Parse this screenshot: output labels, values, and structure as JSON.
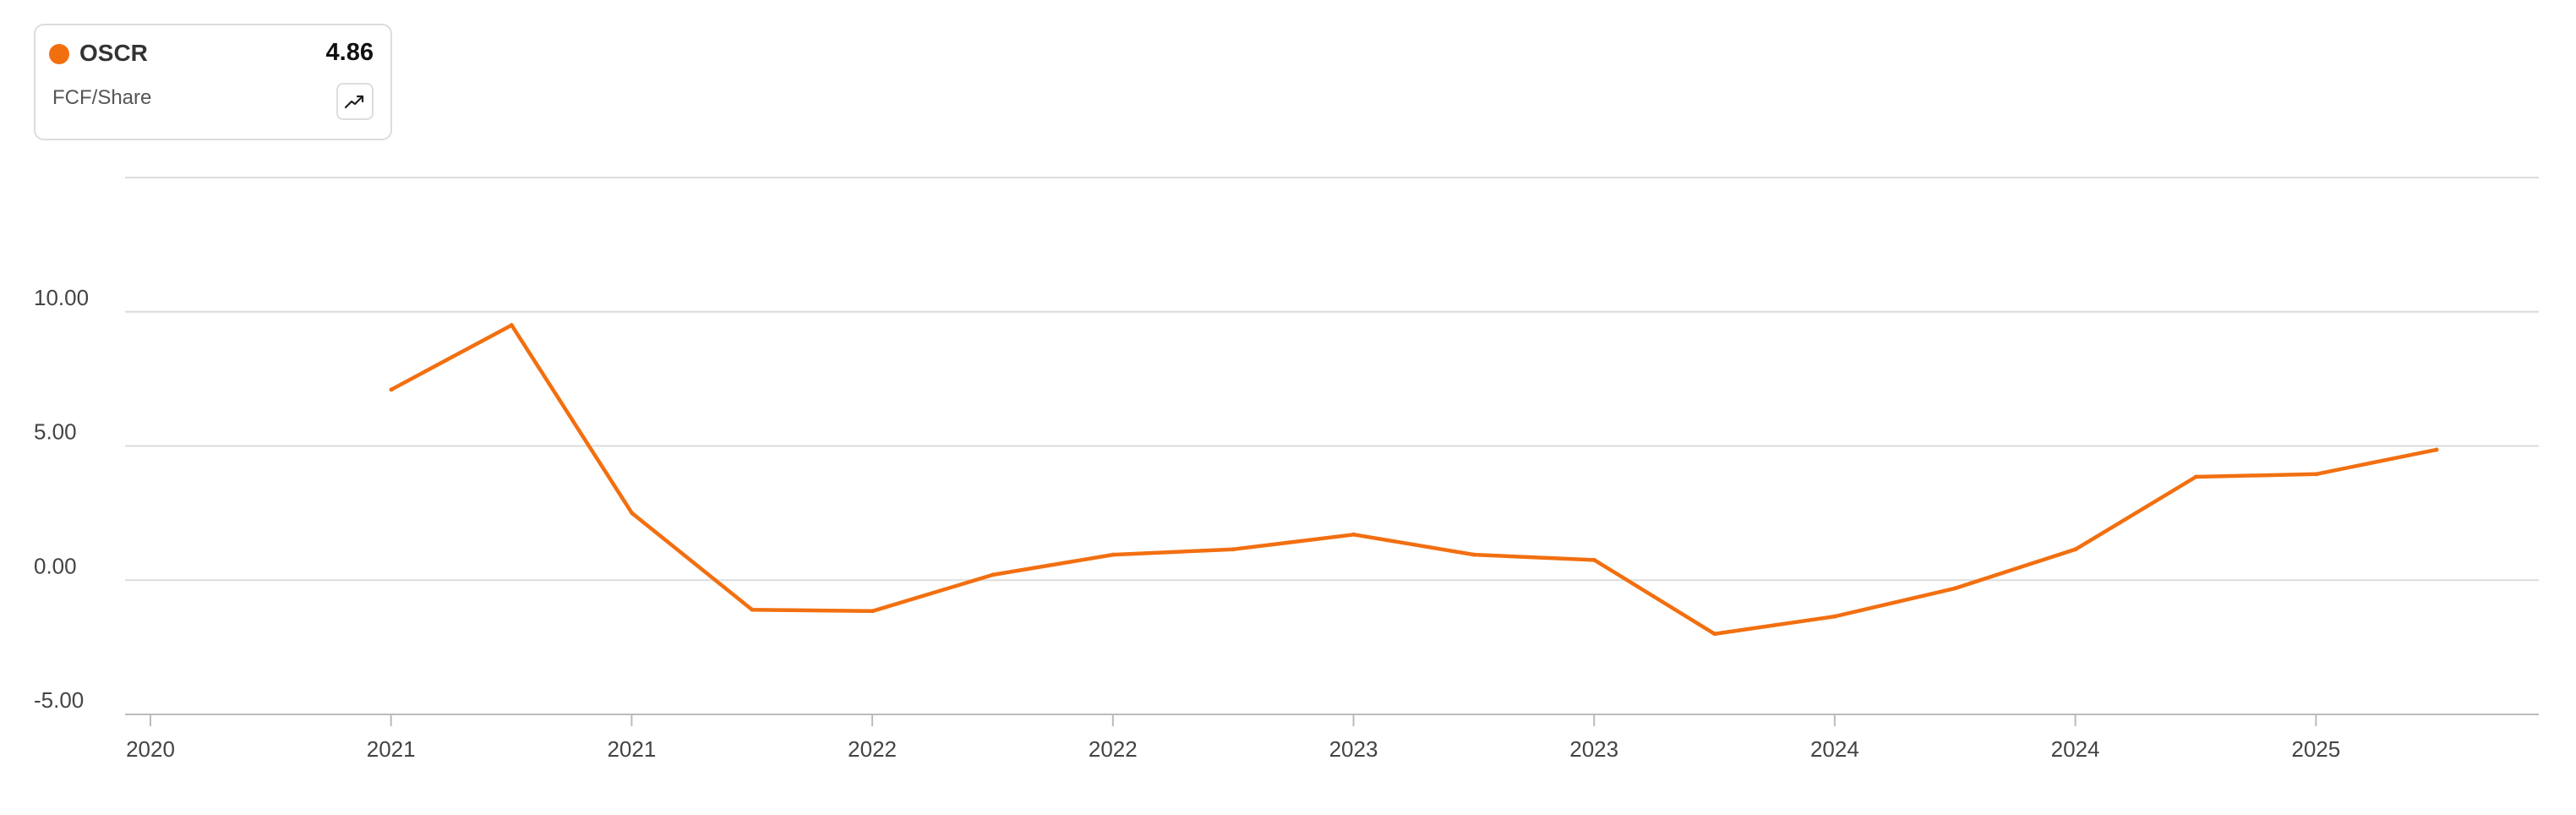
{
  "legend": {
    "ticker": "OSCR",
    "value": "4.86",
    "metric": "FCF/Share",
    "trend_icon": "trending-up-icon"
  },
  "colors": {
    "series": "#f26f10",
    "grid": "#dcdcdc",
    "axis": "#bbbbbb"
  },
  "chart_data": {
    "type": "line",
    "title": "",
    "xlabel": "",
    "ylabel": "",
    "ylim": [
      -5,
      15
    ],
    "yticks": [
      -5,
      0,
      5,
      10,
      15
    ],
    "ytick_labels": [
      "-5.00",
      "0.00",
      "5.00",
      "10.00",
      ""
    ],
    "grid": true,
    "x_tick_labels": [
      "2020",
      "2021",
      "2021",
      "2022",
      "2022",
      "2023",
      "2023",
      "2024",
      "2024",
      "2025"
    ],
    "series": [
      {
        "name": "OSCR",
        "x": [
          "2021-Q1",
          "2021-Q2",
          "2021-Q3",
          "2021-Q4",
          "2022-Q1",
          "2022-Q2",
          "2022-Q3",
          "2022-Q4",
          "2023-Q1",
          "2023-Q2",
          "2023-Q3",
          "2023-Q4",
          "2024-Q1",
          "2024-Q2",
          "2024-Q3",
          "2024-Q4",
          "2025-Q1",
          "2025-Q2"
        ],
        "values": [
          7.1,
          9.5,
          2.5,
          -1.1,
          -1.15,
          0.2,
          0.95,
          1.15,
          1.7,
          0.95,
          0.75,
          -2.0,
          -1.35,
          -0.3,
          1.15,
          3.85,
          3.95,
          4.86
        ]
      }
    ]
  }
}
